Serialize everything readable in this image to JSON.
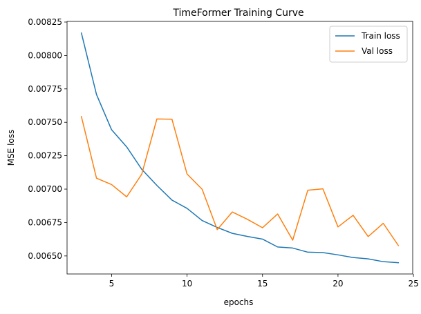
{
  "chart_data": {
    "type": "line",
    "title": "TimeFormer Training Curve",
    "xlabel": "epochs",
    "ylabel": "MSE loss",
    "xlim": [
      2.05,
      24.95
    ],
    "ylim": [
      0.006365,
      0.008255
    ],
    "xticks": [
      5,
      10,
      15,
      20,
      25
    ],
    "xtick_labels": [
      "5",
      "10",
      "15",
      "20",
      "25"
    ],
    "yticks": [
      0.0065,
      0.00675,
      0.007,
      0.00725,
      0.0075,
      0.00775,
      0.008,
      0.00825
    ],
    "ytick_labels": [
      "0.00650",
      "0.00675",
      "0.00700",
      "0.00725",
      "0.00750",
      "0.00775",
      "0.00800",
      "0.00825"
    ],
    "grid": false,
    "legend_position": "top-right",
    "x": [
      3,
      4,
      5,
      6,
      7,
      8,
      9,
      10,
      11,
      12,
      13,
      14,
      15,
      16,
      17,
      18,
      19,
      20,
      21,
      22,
      23,
      24
    ],
    "series": [
      {
        "name": "Train loss",
        "color": "#1f77b4",
        "values": [
          0.008168,
          0.007708,
          0.007444,
          0.007316,
          0.007148,
          0.007028,
          0.006918,
          0.006856,
          0.006765,
          0.006713,
          0.006669,
          0.006646,
          0.006626,
          0.006567,
          0.006559,
          0.006528,
          0.006525,
          0.006508,
          0.006488,
          0.006478,
          0.006457,
          0.006449
        ]
      },
      {
        "name": "Val loss",
        "color": "#ff7f0e",
        "values": [
          0.007543,
          0.007082,
          0.007034,
          0.006942,
          0.007112,
          0.007525,
          0.007523,
          0.007113,
          0.006999,
          0.006697,
          0.006829,
          0.006774,
          0.006711,
          0.006814,
          0.006618,
          0.006992,
          0.007002,
          0.006717,
          0.006804,
          0.006645,
          0.006744,
          0.006578
        ]
      }
    ]
  }
}
